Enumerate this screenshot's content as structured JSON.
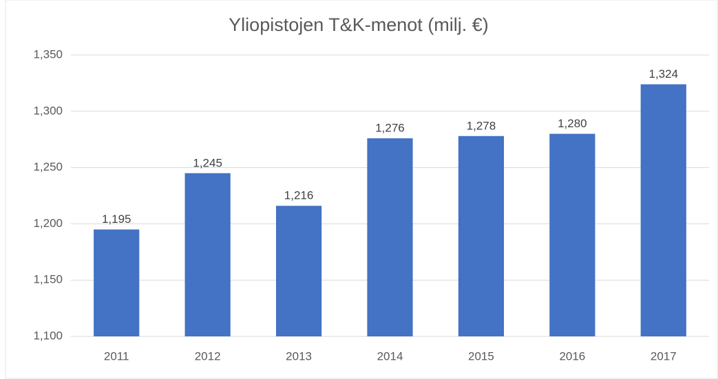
{
  "chart_data": {
    "type": "bar",
    "title": "Yliopistojen T&K-menot (milj. €)",
    "categories": [
      "2011",
      "2012",
      "2013",
      "2014",
      "2015",
      "2016",
      "2017"
    ],
    "values": [
      1195,
      1245,
      1216,
      1276,
      1278,
      1280,
      1324
    ],
    "value_labels": [
      "1,195",
      "1,245",
      "1,216",
      "1,276",
      "1,278",
      "1,280",
      "1,324"
    ],
    "color": "#4472c4",
    "ylim": [
      1100,
      1350
    ],
    "yticks": [
      {
        "value": 1100,
        "label": "1,100"
      },
      {
        "value": 1150,
        "label": "1,150"
      },
      {
        "value": 1200,
        "label": "1,200"
      },
      {
        "value": 1250,
        "label": "1,250"
      },
      {
        "value": 1300,
        "label": "1,300"
      },
      {
        "value": 1350,
        "label": "1,350"
      }
    ],
    "grid": true
  }
}
